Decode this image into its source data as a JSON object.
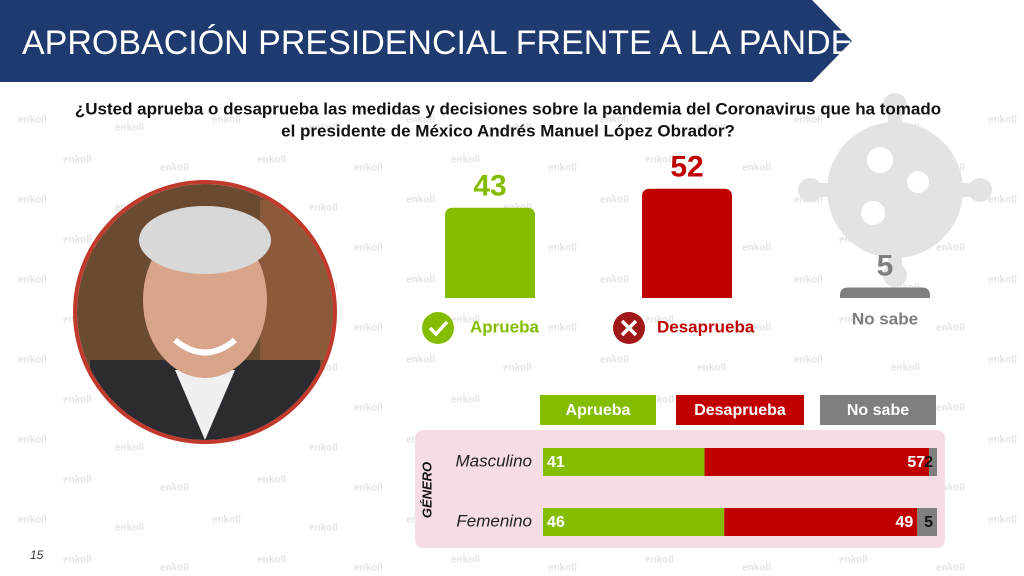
{
  "header": {
    "title": "APROBACIÓN PRESIDENCIAL FRENTE A LA PANDEMIA"
  },
  "question": [
    "¿Usted aprueba o desaprueba las medidas y decisiones sobre la pandemia del Coronavirus que ha tomado",
    "el presidente de México Andrés Manuel López Obrador?"
  ],
  "watermark": "enkoll",
  "page_number": "15",
  "chart_data": [
    {
      "type": "bar",
      "categories": [
        "Aprueba",
        "Desaprueba",
        "No sabe"
      ],
      "values": [
        43,
        52,
        5
      ],
      "colors": [
        "#84bd00",
        "#c00000",
        "#7f7f7f"
      ]
    },
    {
      "type": "stacked_bar",
      "group_label": "GÉNERO",
      "categories": [
        "Masculino",
        "Femenino"
      ],
      "series": [
        {
          "name": "Aprueba",
          "color": "#84bd00",
          "values": [
            41,
            46
          ]
        },
        {
          "name": "Desaprueba",
          "color": "#c00000",
          "values": [
            57,
            49
          ]
        },
        {
          "name": "No sabe",
          "color": "#7f7f7f",
          "values": [
            2,
            5
          ]
        }
      ]
    }
  ]
}
